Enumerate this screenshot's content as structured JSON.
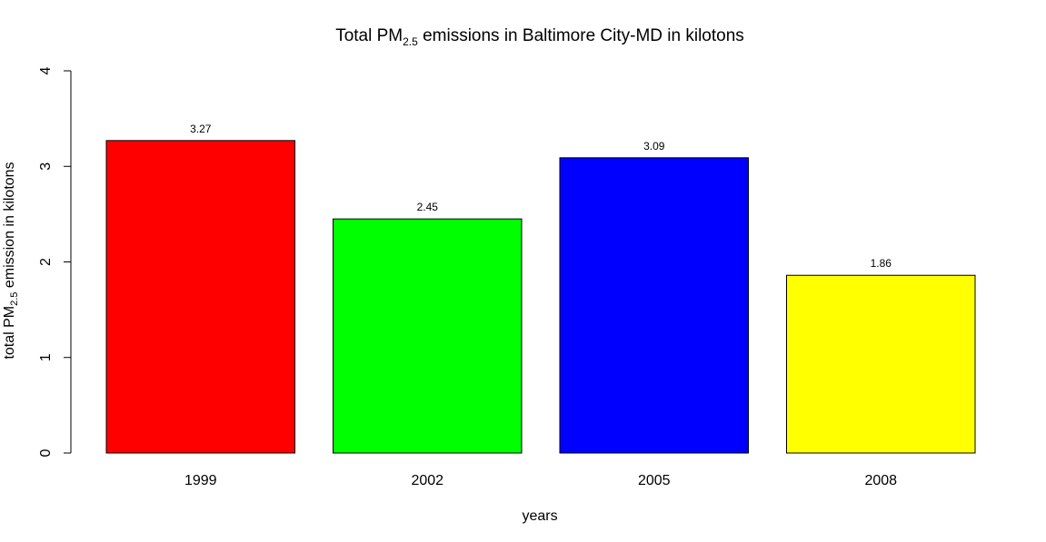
{
  "chart_data": {
    "type": "bar",
    "title": {
      "prefix": "Total PM",
      "subscript": "2.5",
      "suffix": " emissions in Baltimore City-MD in kilotons"
    },
    "xlabel": "years",
    "ylabel": {
      "prefix": "total PM",
      "subscript": "2.5",
      "suffix": " emission in kilotons"
    },
    "categories": [
      "1999",
      "2002",
      "2005",
      "2008"
    ],
    "values": [
      3.27,
      2.45,
      3.09,
      1.86
    ],
    "value_labels": [
      "3.27",
      "2.45",
      "3.09",
      "1.86"
    ],
    "colors": [
      "#ff0000",
      "#00ff00",
      "#0000ff",
      "#ffff00"
    ],
    "ylim": [
      0,
      4
    ],
    "yticks": [
      0,
      1,
      2,
      3,
      4
    ],
    "grid": false,
    "legend": "none"
  }
}
